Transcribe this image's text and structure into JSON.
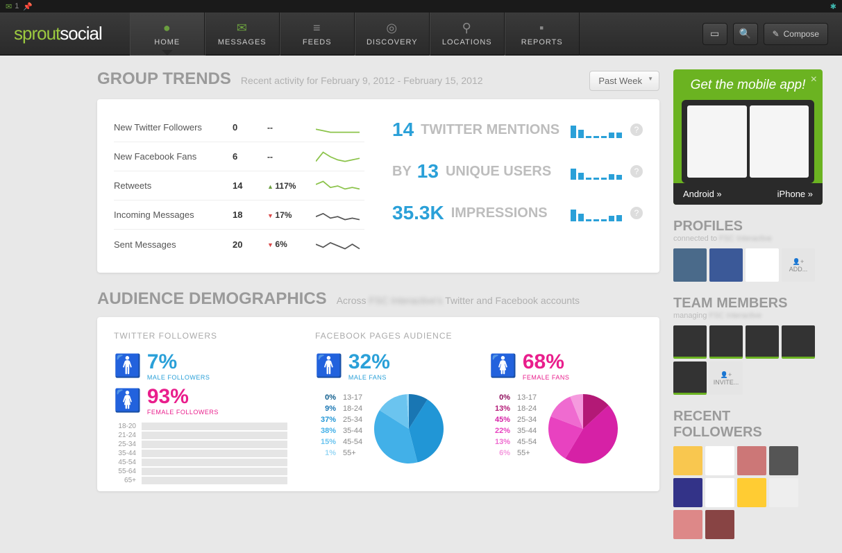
{
  "topbar": {
    "mail_count": "1"
  },
  "brand": {
    "part1": "sprout",
    "part2": "social"
  },
  "nav": {
    "items": [
      {
        "label": "HOME",
        "icon": "●"
      },
      {
        "label": "MESSAGES",
        "icon": "✉"
      },
      {
        "label": "FEEDS",
        "icon": "≡"
      },
      {
        "label": "DISCOVERY",
        "icon": "◎"
      },
      {
        "label": "LOCATIONS",
        "icon": "⚲"
      },
      {
        "label": "REPORTS",
        "icon": "▪"
      }
    ],
    "compose": "Compose"
  },
  "group_trends": {
    "title": "GROUP TRENDS",
    "subtitle": "Recent activity for February 9, 2012 - February 15, 2012",
    "timeframe": "Past Week",
    "rows": [
      {
        "label": "New Twitter Followers",
        "value": "0",
        "delta": "--",
        "dir": "",
        "spark": [
          5,
          4,
          3,
          3,
          3,
          3,
          3
        ],
        "color": "#8bc34a"
      },
      {
        "label": "New Facebook Fans",
        "value": "6",
        "delta": "--",
        "dir": "",
        "spark": [
          3,
          9,
          6,
          4,
          3,
          4,
          5
        ],
        "color": "#8bc34a"
      },
      {
        "label": "Retweets",
        "value": "14",
        "delta": "117%",
        "dir": "up",
        "spark": [
          7,
          9,
          5,
          6,
          4,
          5,
          4
        ],
        "color": "#8bc34a"
      },
      {
        "label": "Incoming Messages",
        "value": "18",
        "delta": "17%",
        "dir": "down",
        "spark": [
          5,
          7,
          4,
          5,
          3,
          4,
          3
        ],
        "color": "#555"
      },
      {
        "label": "Sent Messages",
        "value": "20",
        "delta": "6%",
        "dir": "down",
        "spark": [
          6,
          4,
          7,
          5,
          3,
          6,
          3
        ],
        "color": "#555"
      }
    ],
    "stats": [
      {
        "num": "14",
        "label": "TWITTER MENTIONS",
        "bars": [
          18,
          12,
          3,
          3,
          3,
          8,
          8
        ]
      },
      {
        "prefix": "BY ",
        "num": "13",
        "label": "UNIQUE USERS",
        "bars": [
          16,
          10,
          3,
          3,
          3,
          8,
          7
        ]
      },
      {
        "num": "35.3K",
        "label": "IMPRESSIONS",
        "bars": [
          17,
          11,
          3,
          3,
          3,
          8,
          9
        ]
      }
    ]
  },
  "demographics": {
    "title": "AUDIENCE DEMOGRAPHICS",
    "subtitle_pre": "Across ",
    "subtitle_post": " Twitter and Facebook accounts",
    "twitter": {
      "title": "TWITTER FOLLOWERS",
      "male": {
        "pct": "7%",
        "label": "MALE FOLLOWERS"
      },
      "female": {
        "pct": "93%",
        "label": "FEMALE FOLLOWERS"
      },
      "ages": [
        "18-20",
        "21-24",
        "25-34",
        "35-44",
        "45-54",
        "55-64",
        "65+"
      ]
    },
    "facebook": {
      "title": "FACEBOOK PAGES AUDIENCE",
      "male": {
        "pct": "32%",
        "label": "MALE FANS",
        "breakdown": [
          {
            "pct": "0%",
            "range": "13-17",
            "color": "#0d5c8c"
          },
          {
            "pct": "9%",
            "range": "18-24",
            "color": "#1976b3"
          },
          {
            "pct": "37%",
            "range": "25-34",
            "color": "#2196d6"
          },
          {
            "pct": "38%",
            "range": "35-44",
            "color": "#42b0e8"
          },
          {
            "pct": "15%",
            "range": "45-54",
            "color": "#6bc4ef"
          },
          {
            "pct": "1%",
            "range": "55+",
            "color": "#9ad8f5"
          }
        ],
        "pie_colors": [
          "#0d5c8c",
          "#1976b3",
          "#2196d6",
          "#42b0e8",
          "#6bc4ef",
          "#9ad8f5"
        ],
        "pie_values": [
          0,
          9,
          37,
          38,
          15,
          1
        ]
      },
      "female": {
        "pct": "68%",
        "label": "FEMALE FANS",
        "breakdown": [
          {
            "pct": "0%",
            "range": "13-17",
            "color": "#8e0d5c"
          },
          {
            "pct": "13%",
            "range": "18-24",
            "color": "#b31976"
          },
          {
            "pct": "45%",
            "range": "25-34",
            "color": "#d621a6"
          },
          {
            "pct": "22%",
            "range": "35-44",
            "color": "#e842c0"
          },
          {
            "pct": "13%",
            "range": "45-54",
            "color": "#ef6bd0"
          },
          {
            "pct": "6%",
            "range": "55+",
            "color": "#f59ade"
          }
        ],
        "pie_colors": [
          "#8e0d5c",
          "#b31976",
          "#d621a6",
          "#e842c0",
          "#ef6bd0",
          "#f59ade"
        ],
        "pie_values": [
          0,
          13,
          45,
          22,
          13,
          6
        ]
      }
    }
  },
  "sidebar": {
    "promo": {
      "title": "Get the mobile app!",
      "android": "Android »",
      "iphone": "iPhone »"
    },
    "profiles": {
      "title": "PROFILES",
      "sub": "connected to ",
      "add": "ADD..."
    },
    "team": {
      "title": "TEAM MEMBERS",
      "sub": "managing ",
      "invite": "INVITE..."
    },
    "followers": {
      "title": "RECENT FOLLOWERS"
    }
  }
}
